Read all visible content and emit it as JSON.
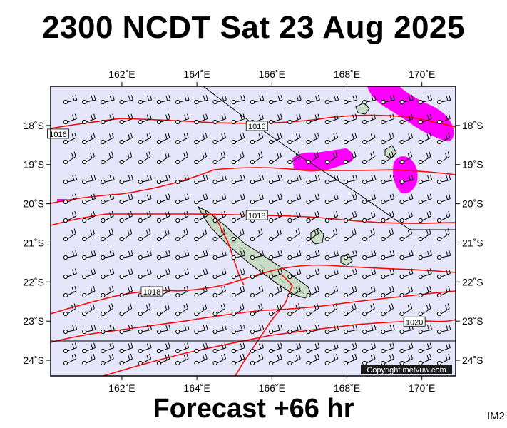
{
  "title": "2300 NCDT Sat 23 Aug 2025",
  "footer": "Forecast +66 hr",
  "tag": "IM2",
  "copyright": "Copyright metvuw.com",
  "map": {
    "lon_range": [
      160.1,
      170.9
    ],
    "lat_range": [
      -24.4,
      -17.0
    ],
    "lon_ticks": [
      {
        "value": 162,
        "label": "162˚E"
      },
      {
        "value": 164,
        "label": "164˚E"
      },
      {
        "value": 166,
        "label": "166˚E"
      },
      {
        "value": 168,
        "label": "168˚E"
      },
      {
        "value": 170,
        "label": "170˚E"
      }
    ],
    "lat_ticks": [
      {
        "value": -18,
        "label": "18˚S"
      },
      {
        "value": -19,
        "label": "19˚S"
      },
      {
        "value": -20,
        "label": "20˚S"
      },
      {
        "value": -21,
        "label": "21˚S"
      },
      {
        "value": -22,
        "label": "22˚S"
      },
      {
        "value": -23,
        "label": "23˚S"
      },
      {
        "value": -24,
        "label": "24˚S"
      }
    ],
    "isobar_labels": [
      {
        "text": "1016",
        "lon": 160.3,
        "lat": -18.22
      },
      {
        "text": "1016",
        "lon": 165.6,
        "lat": -18.02
      },
      {
        "text": "1018",
        "lon": 165.6,
        "lat": -20.3
      },
      {
        "text": "1018",
        "lon": 162.8,
        "lat": -22.25
      },
      {
        "text": "1020",
        "lon": 169.8,
        "lat": -23.02
      }
    ],
    "colors": {
      "ocean": "#e6e6fa",
      "isobar": "#ff0000",
      "precip": "#ff00ff",
      "land": "#c8dcc8",
      "wind": "#000000"
    }
  }
}
